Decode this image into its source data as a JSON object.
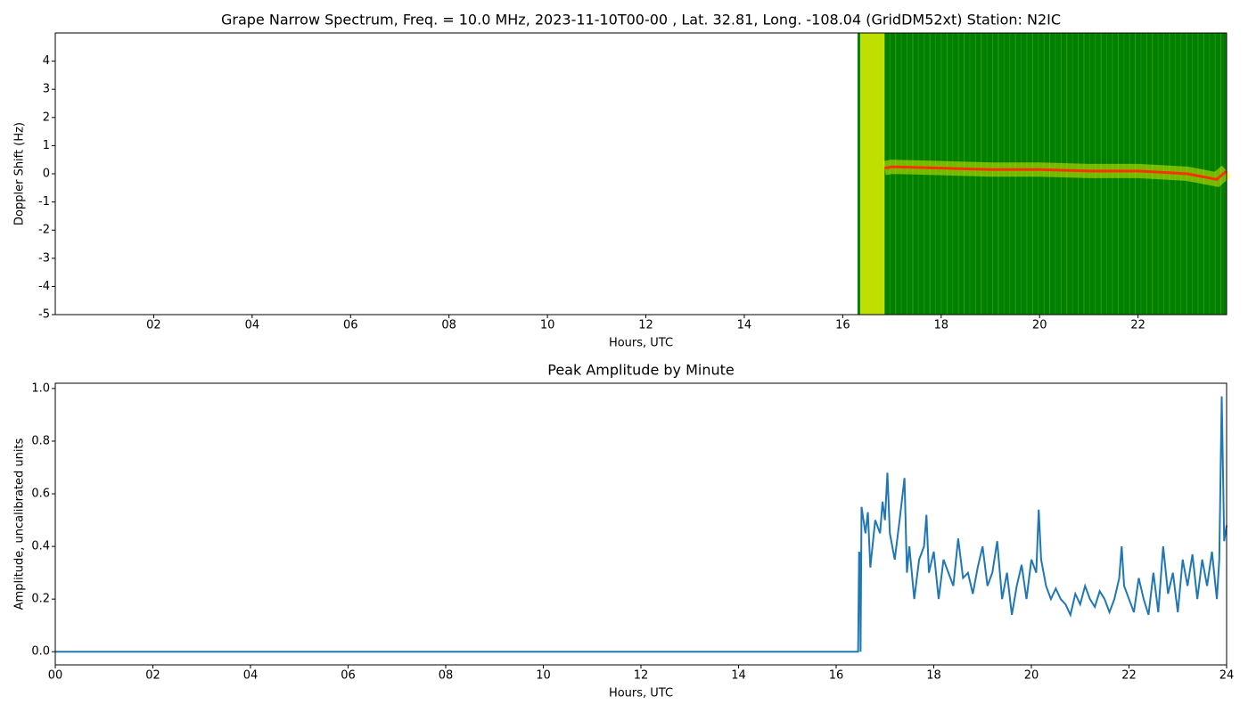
{
  "chart_data": [
    {
      "type": "spectrogram",
      "title": "Grape Narrow Spectrum, Freq. = 10.0 MHz, 2023-11-10T00-00 , Lat.  32.81, Long. -108.04 (GridDM52xt) Station: N2IC",
      "xlabel": "Hours, UTC",
      "ylabel": "Doppler Shift (Hz)",
      "xlim": [
        0,
        23.8
      ],
      "ylim": [
        -5,
        5
      ],
      "xticks": [
        {
          "value": 2,
          "label": "02"
        },
        {
          "value": 4,
          "label": "04"
        },
        {
          "value": 6,
          "label": "06"
        },
        {
          "value": 8,
          "label": "08"
        },
        {
          "value": 10,
          "label": "10"
        },
        {
          "value": 12,
          "label": "12"
        },
        {
          "value": 14,
          "label": "14"
        },
        {
          "value": 16,
          "label": "16"
        },
        {
          "value": 18,
          "label": "18"
        },
        {
          "value": 20,
          "label": "20"
        },
        {
          "value": 22,
          "label": "22"
        }
      ],
      "yticks": [
        -5,
        -4,
        -3,
        -2,
        -1,
        0,
        1,
        2,
        3,
        4
      ],
      "colors": [
        "#008000",
        "#ffff00",
        "#ff3000"
      ],
      "x": [
        16.3,
        16.85,
        17,
        18,
        19,
        20,
        21,
        22,
        22.5,
        23,
        23.3,
        23.6,
        23.8
      ],
      "values": [
        null,
        0.2,
        0.25,
        0.2,
        0.15,
        0.15,
        0.1,
        0.1,
        0.05,
        0.0,
        -0.1,
        -0.2,
        0.1
      ]
    },
    {
      "type": "line",
      "title": "Peak Amplitude by Minute",
      "xlabel": "Hours, UTC",
      "ylabel": "Amplitude, uncalibrated units",
      "xlim": [
        0,
        24
      ],
      "ylim": [
        -0.05,
        1.02
      ],
      "xticks": [
        {
          "value": 0,
          "label": "00"
        },
        {
          "value": 2,
          "label": "02"
        },
        {
          "value": 4,
          "label": "04"
        },
        {
          "value": 6,
          "label": "06"
        },
        {
          "value": 8,
          "label": "08"
        },
        {
          "value": 10,
          "label": "10"
        },
        {
          "value": 12,
          "label": "12"
        },
        {
          "value": 14,
          "label": "14"
        },
        {
          "value": 16,
          "label": "16"
        },
        {
          "value": 18,
          "label": "18"
        },
        {
          "value": 20,
          "label": "20"
        },
        {
          "value": 22,
          "label": "22"
        },
        {
          "value": 24,
          "label": "24"
        }
      ],
      "yticks": [
        {
          "value": 0,
          "label": "0.0"
        },
        {
          "value": 0.2,
          "label": "0.2"
        },
        {
          "value": 0.4,
          "label": "0.4"
        },
        {
          "value": 0.6,
          "label": "0.6"
        },
        {
          "value": 0.8,
          "label": "0.8"
        },
        {
          "value": 1,
          "label": "1.0"
        }
      ],
      "color": "#1f77b4",
      "x": [
        0,
        16.45,
        16.47,
        16.49,
        16.5,
        16.52,
        16.6,
        16.65,
        16.7,
        16.8,
        16.9,
        16.95,
        17.0,
        17.05,
        17.1,
        17.2,
        17.3,
        17.4,
        17.45,
        17.5,
        17.6,
        17.7,
        17.8,
        17.85,
        17.9,
        18.0,
        18.1,
        18.2,
        18.3,
        18.4,
        18.5,
        18.6,
        18.7,
        18.8,
        18.9,
        19.0,
        19.1,
        19.2,
        19.3,
        19.4,
        19.5,
        19.6,
        19.7,
        19.8,
        19.9,
        20.0,
        20.1,
        20.15,
        20.2,
        20.3,
        20.4,
        20.5,
        20.6,
        20.7,
        20.8,
        20.9,
        21.0,
        21.1,
        21.2,
        21.3,
        21.4,
        21.5,
        21.6,
        21.7,
        21.8,
        21.85,
        21.9,
        22.0,
        22.1,
        22.2,
        22.3,
        22.4,
        22.5,
        22.6,
        22.7,
        22.8,
        22.9,
        23.0,
        23.1,
        23.2,
        23.3,
        23.4,
        23.5,
        23.6,
        23.7,
        23.8,
        23.85,
        23.9,
        23.95,
        24.0
      ],
      "values": [
        0,
        0,
        0.38,
        0.36,
        0,
        0.55,
        0.45,
        0.53,
        0.32,
        0.5,
        0.45,
        0.57,
        0.5,
        0.68,
        0.45,
        0.35,
        0.5,
        0.66,
        0.3,
        0.4,
        0.2,
        0.35,
        0.4,
        0.52,
        0.3,
        0.38,
        0.2,
        0.35,
        0.3,
        0.25,
        0.43,
        0.28,
        0.3,
        0.22,
        0.32,
        0.4,
        0.25,
        0.3,
        0.42,
        0.2,
        0.3,
        0.14,
        0.25,
        0.33,
        0.2,
        0.35,
        0.3,
        0.54,
        0.35,
        0.25,
        0.2,
        0.24,
        0.2,
        0.18,
        0.14,
        0.22,
        0.18,
        0.25,
        0.2,
        0.17,
        0.23,
        0.2,
        0.15,
        0.2,
        0.28,
        0.4,
        0.25,
        0.2,
        0.15,
        0.28,
        0.2,
        0.14,
        0.3,
        0.15,
        0.4,
        0.22,
        0.3,
        0.15,
        0.35,
        0.25,
        0.37,
        0.2,
        0.35,
        0.25,
        0.38,
        0.2,
        0.35,
        0.97,
        0.42,
        0.48
      ]
    }
  ]
}
